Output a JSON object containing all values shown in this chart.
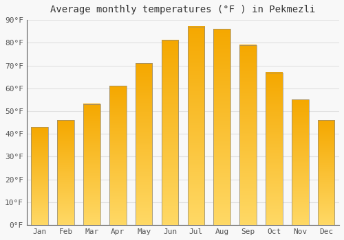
{
  "title": "Average monthly temperatures (°F ) in Pekmezli",
  "months": [
    "Jan",
    "Feb",
    "Mar",
    "Apr",
    "May",
    "Jun",
    "Jul",
    "Aug",
    "Sep",
    "Oct",
    "Nov",
    "Dec"
  ],
  "values": [
    43,
    46,
    53,
    61,
    71,
    81,
    87,
    86,
    79,
    67,
    55,
    46
  ],
  "bar_color_dark": "#F5A800",
  "bar_color_light": "#FFD966",
  "bar_edge_color": "#888888",
  "ylim": [
    0,
    90
  ],
  "yticks": [
    0,
    10,
    20,
    30,
    40,
    50,
    60,
    70,
    80,
    90
  ],
  "ytick_labels": [
    "0°F",
    "10°F",
    "20°F",
    "30°F",
    "40°F",
    "50°F",
    "60°F",
    "70°F",
    "80°F",
    "90°F"
  ],
  "background_color": "#F8F8F8",
  "plot_bg_color": "#F8F8F8",
  "grid_color": "#E0E0E0",
  "title_fontsize": 10,
  "tick_fontsize": 8,
  "tick_color": "#555555",
  "bar_width": 0.65
}
